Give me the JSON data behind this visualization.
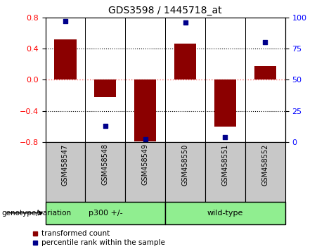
{
  "title": "GDS3598 / 1445718_at",
  "samples": [
    "GSM458547",
    "GSM458548",
    "GSM458549",
    "GSM458550",
    "GSM458551",
    "GSM458552"
  ],
  "bar_values": [
    0.52,
    -0.22,
    -0.79,
    0.46,
    -0.6,
    0.17
  ],
  "percentile_values": [
    97,
    13,
    2,
    96,
    4,
    80
  ],
  "bar_color": "#8B0000",
  "dot_color": "#00008B",
  "ylim_left": [
    -0.8,
    0.8
  ],
  "ylim_right": [
    0,
    100
  ],
  "yticks_left": [
    -0.8,
    -0.4,
    0.0,
    0.4,
    0.8
  ],
  "yticks_right": [
    0,
    25,
    50,
    75,
    100
  ],
  "group_defs": [
    {
      "start": 0,
      "end": 3,
      "label": "p300 +/-"
    },
    {
      "start": 3,
      "end": 6,
      "label": "wild-type"
    }
  ],
  "group_label_text": "genotype/variation",
  "legend_items": [
    {
      "label": "transformed count",
      "color": "#8B0000"
    },
    {
      "label": "percentile rank within the sample",
      "color": "#00008B"
    }
  ],
  "hline_color": "#FF6666",
  "sample_bg_color": "#C8C8C8",
  "group_bg_color": "#90EE90",
  "bar_width": 0.55
}
